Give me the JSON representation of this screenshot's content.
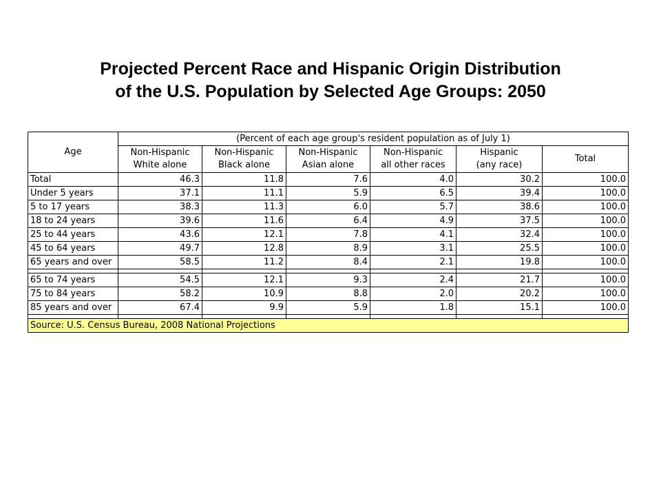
{
  "title": {
    "line1": "Projected Percent Race and Hispanic Origin Distribution",
    "line2": "of the U.S. Population by Selected Age Groups: 2050"
  },
  "chart_data": {
    "type": "table",
    "corner_header": "Age",
    "group_header": "(Percent of each age group's resident population as of July 1)",
    "columns": [
      [
        "Non-Hispanic",
        "White alone"
      ],
      [
        "Non-Hispanic",
        "Black alone"
      ],
      [
        "Non-Hispanic",
        "Asian alone"
      ],
      [
        "Non-Hispanic",
        "all other races"
      ],
      [
        "Hispanic",
        "(any race)"
      ],
      [
        "Total",
        ""
      ]
    ],
    "rows": [
      {
        "label": "Total",
        "values": [
          "46.3",
          "11.8",
          "7.6",
          "4.0",
          "30.2",
          "100.0"
        ]
      },
      {
        "label": "Under 5 years",
        "values": [
          "37.1",
          "11.1",
          "5.9",
          "6.5",
          "39.4",
          "100.0"
        ]
      },
      {
        "label": "5 to 17 years",
        "values": [
          "38.3",
          "11.3",
          "6.0",
          "5.7",
          "38.6",
          "100.0"
        ]
      },
      {
        "label": "18 to 24 years",
        "values": [
          "39.6",
          "11.6",
          "6.4",
          "4.9",
          "37.5",
          "100.0"
        ]
      },
      {
        "label": "25 to 44 years",
        "values": [
          "43.6",
          "12.1",
          "7.8",
          "4.1",
          "32.4",
          "100.0"
        ]
      },
      {
        "label": "45 to 64 years",
        "values": [
          "49.7",
          "12.8",
          "8.9",
          "3.1",
          "25.5",
          "100.0"
        ]
      },
      {
        "label": "65 years and over",
        "values": [
          "58.5",
          "11.2",
          "8.4",
          "2.1",
          "19.8",
          "100.0"
        ]
      },
      {
        "label": "65 to 74 years",
        "values": [
          "54.5",
          "12.1",
          "9.3",
          "2.4",
          "21.7",
          "100.0"
        ]
      },
      {
        "label": "75 to 84 years",
        "values": [
          "58.2",
          "10.9",
          "8.8",
          "2.0",
          "20.2",
          "100.0"
        ]
      },
      {
        "label": "85 years and over",
        "values": [
          "67.4",
          "9.9",
          "5.9",
          "1.8",
          "15.1",
          "100.0"
        ]
      }
    ],
    "source": "Source: U.S. Census Bureau, 2008 National Projections"
  },
  "colors": {
    "source_background": "#ffff99",
    "border": "#000000"
  }
}
